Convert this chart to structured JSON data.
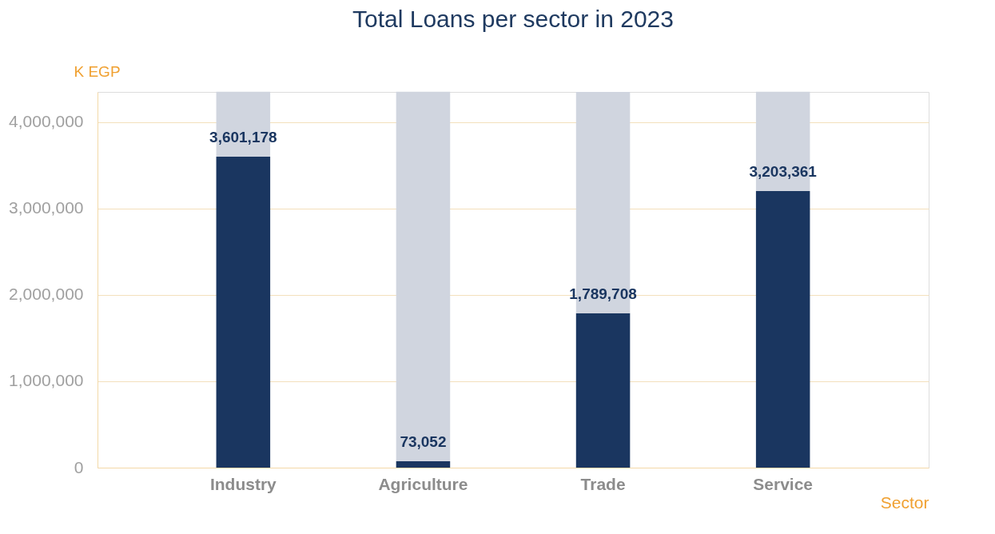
{
  "chart_data": {
    "type": "bar",
    "title": "Total Loans per sector in 2023",
    "ylabel": "K EGP",
    "xlabel": "Sector",
    "categories": [
      "Industry",
      "Agriculture",
      "Trade",
      "Service"
    ],
    "stacked": true,
    "series": [
      {
        "color": "#1a3660",
        "values": [
          3601178,
          73052,
          1789708,
          3203361
        ],
        "value_labels": [
          "3,601,178",
          "73,052",
          "1,789,708",
          "3,203,361"
        ]
      },
      {
        "color": "#d0d5df",
        "values": [
          750000,
          4280000,
          2560000,
          1150000
        ]
      }
    ],
    "ylim": [
      0,
      4350000
    ],
    "yticks": [
      {
        "value": 0,
        "label": "0"
      },
      {
        "value": 1000000,
        "label": "1,000,000"
      },
      {
        "value": 2000000,
        "label": "2,000,000"
      },
      {
        "value": 3000000,
        "label": "3,000,000"
      },
      {
        "value": 4000000,
        "label": "4,000,000"
      }
    ],
    "grid": "y"
  }
}
